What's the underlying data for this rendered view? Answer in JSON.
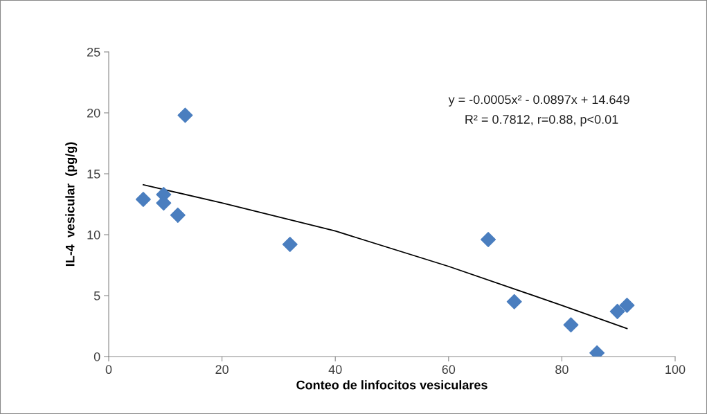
{
  "chart_data": {
    "type": "scatter",
    "xlabel": "Conteo de linfocitos vesiculares",
    "ylabel": "IL-4  vesicular  (pg/g)",
    "xlim": [
      0,
      100
    ],
    "xticks": [
      0,
      20,
      40,
      60,
      80,
      100
    ],
    "ylim": [
      0,
      25
    ],
    "yticks": [
      0,
      5,
      10,
      15,
      20,
      25
    ],
    "grid": false,
    "legend": false,
    "marker": "diamond",
    "series": [
      {
        "color": "#4a7ebf",
        "x": [
          6.1,
          9.7,
          9.7,
          12.2,
          13.5,
          32.0,
          67.0,
          71.6,
          81.6,
          86.2,
          89.8,
          91.5
        ],
        "values": [
          12.9,
          13.3,
          12.6,
          11.6,
          19.8,
          9.2,
          9.6,
          4.5,
          2.6,
          0.3,
          3.7,
          4.2
        ]
      },
      {
        "type": "line",
        "color": "#000000",
        "marker": "none",
        "line_style": "solid",
        "x": [
          6.1,
          20,
          40,
          60,
          80,
          91.5
        ],
        "values": [
          14.1,
          12.6,
          10.3,
          7.4,
          4.2,
          2.3
        ]
      }
    ],
    "annotations": [
      "y = -0.0005x² - 0.0897x + 14.649",
      "R² = 0.7812, r=0.88, p<0.01"
    ]
  }
}
